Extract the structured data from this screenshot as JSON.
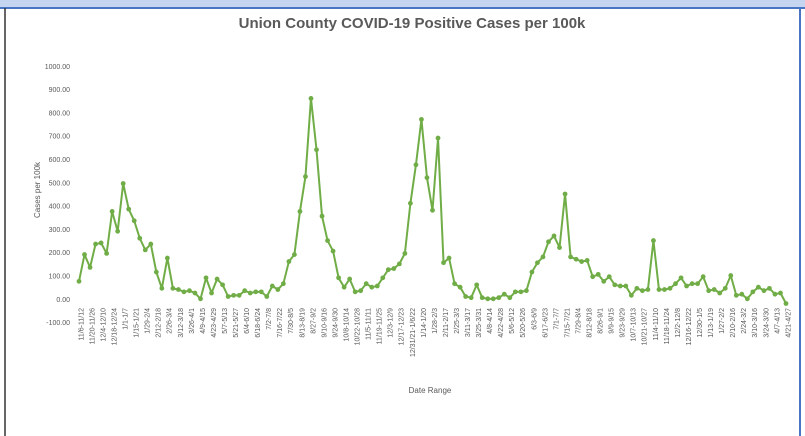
{
  "chart_data": {
    "type": "line",
    "title": "Union County COVID-19 Positive Cases per 100k",
    "y_label": "Cases per 100k",
    "x_label": "Date Range",
    "color": "#70ad47",
    "ylim": [
      -100,
      1000
    ],
    "yticks": [
      {
        "value": -100,
        "label": "-100.00"
      },
      {
        "value": 0,
        "label": "0.00"
      },
      {
        "value": 100,
        "label": "100.00"
      },
      {
        "value": 200,
        "label": "200.00"
      },
      {
        "value": 300,
        "label": "300.00"
      },
      {
        "value": 400,
        "label": "400.00"
      },
      {
        "value": 500,
        "label": "500.00"
      },
      {
        "value": 600,
        "label": "600.00"
      },
      {
        "value": 700,
        "label": "700.00"
      },
      {
        "value": 800,
        "label": "800.00"
      },
      {
        "value": 900,
        "label": "900.00"
      },
      {
        "value": 1000,
        "label": "1000.00"
      }
    ],
    "grid": false,
    "categories": [
      "11/6-11/12",
      null,
      "11/20-11/26",
      null,
      "12/4-12/10",
      null,
      "12/18-12/24",
      null,
      "1/1-1/7",
      null,
      "1/15-1/21",
      null,
      "1/29-2/4",
      null,
      "2/12-2/18",
      null,
      "2/26-3/4",
      null,
      "3/12-3/18",
      null,
      "3/26-4/1",
      null,
      "4/9-4/15",
      null,
      "4/23-4/29",
      null,
      "5/7-5/13",
      null,
      "5/21-5/27",
      null,
      "6/4-6/10",
      null,
      "6/18-6/24",
      null,
      "7/2-7/8",
      null,
      "7/16-7/22",
      null,
      "7/30-8/5",
      null,
      "8/13-8/19",
      null,
      "8/27-9/2",
      null,
      "9/10-9/16",
      null,
      "9/24-9/30",
      null,
      "10/8-10/14",
      null,
      "10/22-10/28",
      null,
      "11/5-11/11",
      null,
      "11/19-11/25",
      null,
      "12/3-12/9",
      null,
      "12/17-12/23",
      null,
      "12/31/21-1/6/22",
      null,
      "1/14-1/20",
      null,
      "1/28-2/3",
      null,
      "2/11-2/17",
      null,
      "2/25-3/3",
      null,
      "3/11-3/17",
      null,
      "3/25-3/31",
      null,
      "4/8-4/14",
      null,
      "4/22-4/28",
      null,
      "5/6-5/12",
      null,
      "5/20-5/26",
      null,
      "6/3-6/9",
      null,
      "6/17-6/23",
      null,
      "7/1-7/7",
      null,
      "7/15-7/21",
      null,
      "7/29-8/4",
      null,
      "8/12-8/18",
      null,
      "8/26-9/1",
      null,
      "9/9-9/15",
      null,
      "9/23-9/29",
      null,
      "10/7-10/13",
      null,
      "10/21-10/27",
      null,
      "11/4-11/10",
      null,
      "11/18-11/24",
      null,
      "12/2-12/8",
      null,
      "12/16-12/22",
      null,
      "12/30-1/5",
      null,
      "1/13-1/19",
      null,
      "1/27-2/2",
      null,
      "2/10-2/16",
      null,
      "2/24-3/2",
      null,
      "3/10-3/16",
      null,
      "3/24-3/30",
      null,
      "4/7-4/13",
      null,
      "4/21-4/27"
    ],
    "values": [
      80,
      195,
      140,
      240,
      245,
      200,
      380,
      295,
      500,
      390,
      340,
      265,
      215,
      240,
      120,
      50,
      180,
      50,
      45,
      35,
      40,
      30,
      5,
      95,
      30,
      90,
      65,
      15,
      20,
      20,
      40,
      30,
      35,
      35,
      15,
      60,
      45,
      70,
      165,
      195,
      380,
      530,
      865,
      645,
      360,
      255,
      210,
      95,
      55,
      90,
      35,
      40,
      70,
      55,
      60,
      95,
      130,
      135,
      155,
      200,
      415,
      580,
      775,
      525,
      385,
      695,
      160,
      180,
      70,
      55,
      15,
      10,
      65,
      10,
      5,
      5,
      10,
      25,
      10,
      35,
      35,
      40,
      120,
      160,
      185,
      250,
      275,
      225,
      455,
      185,
      175,
      165,
      170,
      100,
      110,
      80,
      100,
      65,
      60,
      60,
      20,
      50,
      40,
      45,
      255,
      45,
      45,
      50,
      70,
      95,
      60,
      70,
      70,
      100,
      40,
      45,
      30,
      50,
      105,
      20,
      25,
      5,
      35,
      55,
      40,
      50,
      25,
      30,
      -15
    ]
  }
}
